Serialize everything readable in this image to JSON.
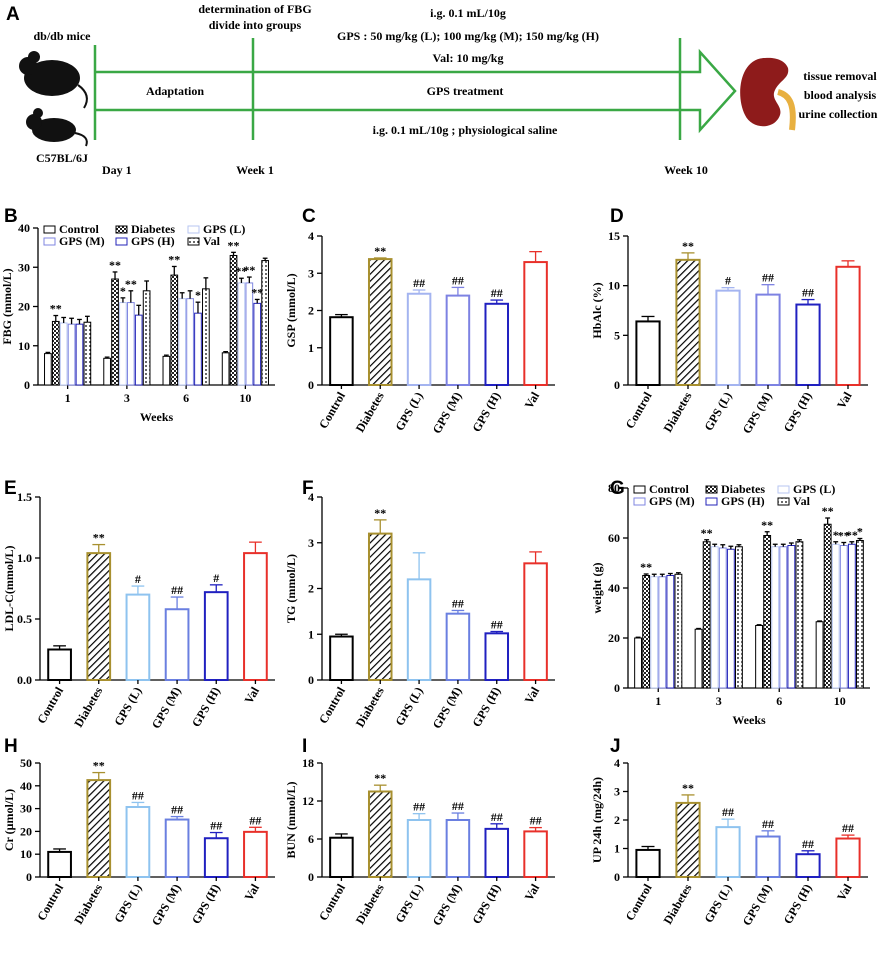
{
  "schematic": {
    "label": "A",
    "groups": [
      "db/db mice",
      "C57BL/6J"
    ],
    "timepoints": [
      "Day 1",
      "Week 1",
      "Week 10"
    ],
    "fbg_note": [
      "determination of FBG",
      "divide into groups"
    ],
    "treatment_notes": [
      "i.g.  0.1 mL/10g",
      "GPS : 50 mg/kg (L); 100 mg/kg (M); 150 mg/kg (H)",
      "Val: 10 mg/kg"
    ],
    "phases": [
      "Adaptation",
      "GPS treatment"
    ],
    "control_note": "i.g. 0.1 mL/10g ; physiological saline",
    "endpoints": [
      "tissue  removal",
      "blood analysis",
      "urine collection"
    ]
  },
  "chart_data": [
    {
      "panel": "B",
      "type": "grouped_bar",
      "ylabel": "FBG (mmol/L)",
      "xlabel": "Weeks",
      "categories": [
        "1",
        "3",
        "6",
        "10"
      ],
      "ylim": [
        0,
        40
      ],
      "yticks": [
        0,
        10,
        20,
        30,
        40
      ],
      "legend": "top-left",
      "series": [
        {
          "name": "Control",
          "color": "#000000",
          "pattern": null,
          "values": [
            8,
            6.8,
            7.3,
            8.2
          ],
          "errors": [
            0.3,
            0.3,
            0.3,
            0.3
          ],
          "annotations": [
            null,
            null,
            null,
            null
          ]
        },
        {
          "name": "Diabetes",
          "color": "#000000",
          "pattern": "checker",
          "values": [
            16.2,
            27,
            28,
            33
          ],
          "errors": [
            1.5,
            1.8,
            2.2,
            0.8
          ],
          "annotations": [
            "**",
            "**",
            "**",
            "**"
          ]
        },
        {
          "name": "GPS (L)",
          "color": "#b7c6f2",
          "pattern": null,
          "values": [
            15.8,
            21,
            22,
            26
          ],
          "errors": [
            1.4,
            1.2,
            1.5,
            1.2
          ],
          "annotations": [
            null,
            "*",
            null,
            "**"
          ]
        },
        {
          "name": "GPS (M)",
          "color": "#7f86e0",
          "pattern": null,
          "values": [
            15.5,
            21,
            22,
            26
          ],
          "errors": [
            1.5,
            3,
            2,
            1.5
          ],
          "annotations": [
            null,
            "**",
            null,
            "**"
          ]
        },
        {
          "name": "GPS (H)",
          "color": "#2323b8",
          "pattern": null,
          "values": [
            15.5,
            17.8,
            18.3,
            20.8
          ],
          "errors": [
            1.2,
            2.5,
            2.8,
            1
          ],
          "annotations": [
            null,
            null,
            "*",
            "**"
          ]
        },
        {
          "name": "Val",
          "color": "#000000",
          "pattern": "dots",
          "values": [
            16,
            24,
            24.5,
            31.7
          ],
          "errors": [
            1.5,
            2.5,
            2.8,
            0.6
          ],
          "annotations": [
            null,
            null,
            null,
            null
          ]
        }
      ]
    },
    {
      "panel": "C",
      "type": "bar",
      "ylabel": "GSP (mmol/L)",
      "categories": [
        "Control",
        "Diabetes",
        "GPS (L)",
        "GPS (M)",
        "GPS (H)",
        "Val"
      ],
      "values": [
        1.82,
        3.38,
        2.45,
        2.4,
        2.18,
        3.3
      ],
      "errors": [
        0.07,
        0.03,
        0.1,
        0.22,
        0.1,
        0.28
      ],
      "annotations": [
        null,
        "**",
        "##",
        "##",
        "##",
        null
      ],
      "colors": [
        "#000000",
        "#a8902f",
        "#a4b4f0",
        "#7d82e2",
        "#2020c0",
        "#e8302a"
      ],
      "patterns": [
        null,
        "hatch",
        null,
        null,
        null,
        null
      ],
      "ylim": [
        0,
        4
      ],
      "yticks": [
        0,
        1,
        2,
        3,
        4
      ]
    },
    {
      "panel": "D",
      "type": "bar",
      "ylabel": "HbAlc (%)",
      "categories": [
        "Control",
        "Diabetes",
        "GPS (L)",
        "GPS (M)",
        "GPS (H)",
        "Val"
      ],
      "values": [
        6.4,
        12.6,
        9.5,
        9.1,
        8.1,
        11.9
      ],
      "errors": [
        0.5,
        0.7,
        0.3,
        1,
        0.5,
        0.6
      ],
      "annotations": [
        null,
        "**",
        "#",
        "##",
        "##",
        null
      ],
      "colors": [
        "#000000",
        "#a8902f",
        "#a4b4f0",
        "#7d82e2",
        "#2020c0",
        "#e8302a"
      ],
      "patterns": [
        null,
        "hatch",
        null,
        null,
        null,
        null
      ],
      "ylim": [
        0,
        15
      ],
      "yticks": [
        0,
        5,
        10,
        15
      ]
    },
    {
      "panel": "E",
      "type": "bar",
      "ylabel": "LDL-C(mmol/L)",
      "categories": [
        "Control",
        "Diabetes",
        "GPS (L)",
        "GPS (M)",
        "GPS (H)",
        "Val"
      ],
      "values": [
        0.25,
        1.04,
        0.7,
        0.58,
        0.72,
        1.04
      ],
      "errors": [
        0.03,
        0.07,
        0.07,
        0.1,
        0.06,
        0.09
      ],
      "annotations": [
        null,
        "**",
        "#",
        "##",
        "#",
        null
      ],
      "colors": [
        "#000000",
        "#a8902f",
        "#8ec3ef",
        "#6a7fe0",
        "#2020c0",
        "#e8302a"
      ],
      "patterns": [
        null,
        "hatch",
        null,
        null,
        null,
        null
      ],
      "ylim": [
        0,
        1.5
      ],
      "yticks": [
        {
          "value": 0,
          "label": "0.0"
        },
        0.5,
        {
          "value": 1,
          "label": "1.0"
        },
        1.5
      ]
    },
    {
      "panel": "F",
      "type": "bar",
      "ylabel": "TG (mmol/L)",
      "categories": [
        "Control",
        "Diabetes",
        "GPS (L)",
        "GPS (M)",
        "GPS (H)",
        "Val"
      ],
      "values": [
        0.95,
        3.2,
        2.2,
        1.45,
        1.02,
        2.55
      ],
      "errors": [
        0.05,
        0.3,
        0.58,
        0.07,
        0.04,
        0.25
      ],
      "annotations": [
        null,
        "**",
        null,
        "##",
        "##",
        null
      ],
      "colors": [
        "#000000",
        "#a8902f",
        "#8ec3ef",
        "#6a7fe0",
        "#2020c0",
        "#e8302a"
      ],
      "patterns": [
        null,
        "hatch",
        null,
        null,
        null,
        null
      ],
      "ylim": [
        0,
        4
      ],
      "yticks": [
        0,
        1,
        2,
        3,
        4
      ]
    },
    {
      "panel": "G",
      "type": "grouped_bar",
      "ylabel": "weight (g)",
      "xlabel": "Weeks",
      "categories": [
        "1",
        "3",
        "6",
        "10"
      ],
      "ylim": [
        0,
        80
      ],
      "yticks": [
        0,
        20,
        40,
        60,
        80
      ],
      "legend": "top-left",
      "series": [
        {
          "name": "Control",
          "color": "#000000",
          "pattern": null,
          "values": [
            20,
            23.5,
            25,
            26.5
          ],
          "errors": [
            0.3,
            0.3,
            0.3,
            0.3
          ],
          "annotations": [
            null,
            null,
            null,
            null
          ]
        },
        {
          "name": "Diabetes",
          "color": "#000000",
          "pattern": "checker",
          "values": [
            45,
            58.5,
            61,
            65.5
          ],
          "errors": [
            0.6,
            0.8,
            1.5,
            2.5
          ],
          "annotations": [
            "**",
            "**",
            "**",
            "**"
          ]
        },
        {
          "name": "GPS (L)",
          "color": "#b7c6f2",
          "pattern": null,
          "values": [
            44.5,
            56.5,
            56.5,
            57.5
          ],
          "errors": [
            1,
            1,
            1,
            1
          ],
          "annotations": [
            null,
            null,
            null,
            "*"
          ]
        },
        {
          "name": "GPS (M)",
          "color": "#7f86e0",
          "pattern": null,
          "values": [
            44.5,
            56,
            56.5,
            57
          ],
          "errors": [
            1,
            1.3,
            1,
            1.2
          ],
          "annotations": [
            null,
            null,
            null,
            "**"
          ]
        },
        {
          "name": "GPS (H)",
          "color": "#2323b8",
          "pattern": null,
          "values": [
            45,
            55.5,
            57,
            57.5
          ],
          "errors": [
            0.8,
            1.2,
            1,
            1
          ],
          "annotations": [
            null,
            null,
            null,
            "**"
          ]
        },
        {
          "name": "Val",
          "color": "#000000",
          "pattern": "dots",
          "values": [
            45.5,
            56.5,
            58.5,
            59
          ],
          "errors": [
            0.6,
            0.8,
            0.8,
            0.8
          ],
          "annotations": [
            null,
            null,
            null,
            "*"
          ]
        }
      ]
    },
    {
      "panel": "H",
      "type": "bar",
      "ylabel": "Cr (μmol/L)",
      "categories": [
        "Control",
        "Diabetes",
        "GPS (L)",
        "GPS (M)",
        "GPS (H)",
        "Val"
      ],
      "values": [
        11,
        42.5,
        30.7,
        25.2,
        17,
        19.8
      ],
      "errors": [
        1.3,
        3.3,
        2,
        1.3,
        2.5,
        2
      ],
      "annotations": [
        null,
        "**",
        "##",
        "##",
        "##",
        "##"
      ],
      "colors": [
        "#000000",
        "#a8902f",
        "#8ec3ef",
        "#6a7fe0",
        "#2020c0",
        "#e8302a"
      ],
      "patterns": [
        null,
        "hatch",
        null,
        null,
        null,
        null
      ],
      "ylim": [
        0,
        50
      ],
      "yticks": [
        0,
        10,
        20,
        30,
        40,
        50
      ]
    },
    {
      "panel": "I",
      "type": "bar",
      "ylabel": "BUN (mmol/L)",
      "categories": [
        "Control",
        "Diabetes",
        "GPS (L)",
        "GPS (M)",
        "GPS (H)",
        "Val"
      ],
      "values": [
        6.2,
        13.5,
        9,
        9,
        7.6,
        7.2
      ],
      "errors": [
        0.6,
        1,
        1,
        1.1,
        0.8,
        0.6
      ],
      "annotations": [
        null,
        "**",
        "##",
        "##",
        "##",
        "##"
      ],
      "colors": [
        "#000000",
        "#a8902f",
        "#8ec3ef",
        "#6a7fe0",
        "#2020c0",
        "#e8302a"
      ],
      "patterns": [
        null,
        "hatch",
        null,
        null,
        null,
        null
      ],
      "ylim": [
        0,
        18
      ],
      "yticks": [
        0,
        6,
        12,
        18
      ]
    },
    {
      "panel": "J",
      "type": "bar",
      "ylabel": "UP 24h (mg/24h)",
      "categories": [
        "Control",
        "Diabetes",
        "GPS (L)",
        "GPS (M)",
        "GPS (H)",
        "Val"
      ],
      "values": [
        0.95,
        2.6,
        1.75,
        1.42,
        0.8,
        1.35
      ],
      "errors": [
        0.12,
        0.28,
        0.28,
        0.2,
        0.12,
        0.12
      ],
      "annotations": [
        null,
        "**",
        "##",
        "##",
        "##",
        "##"
      ],
      "colors": [
        "#000000",
        "#a8902f",
        "#8ec3ef",
        "#6a7fe0",
        "#2020c0",
        "#e8302a"
      ],
      "patterns": [
        null,
        "hatch",
        null,
        null,
        null,
        null
      ],
      "ylim": [
        0,
        4
      ],
      "yticks": [
        0,
        1,
        2,
        3,
        4
      ]
    }
  ]
}
